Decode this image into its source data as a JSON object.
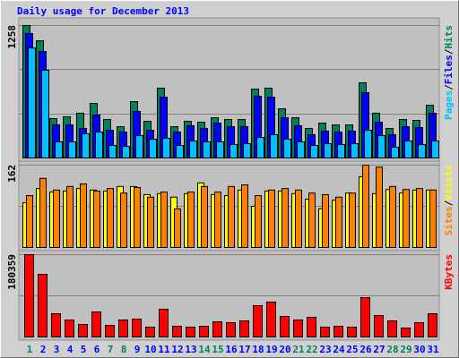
{
  "chart_data": [
    {
      "type": "bar",
      "title": "Daily usage for December 2013",
      "ylim": [
        0,
        1258
      ],
      "yticks": [
        1258
      ],
      "grid": true,
      "legend_separator": "/",
      "series": [
        {
          "name": "Hits",
          "color": "#00805c",
          "values": [
            1258,
            1113,
            374,
            391,
            425,
            518,
            365,
            297,
            535,
            348,
            663,
            297,
            348,
            340,
            382,
            365,
            365,
            654,
            663,
            467,
            382,
            280,
            331,
            314,
            314,
            714,
            425,
            280,
            365,
            357,
            501
          ]
        },
        {
          "name": "Files",
          "color": "#0000ff",
          "values": [
            1181,
            1011,
            314,
            314,
            280,
            408,
            263,
            246,
            442,
            263,
            578,
            246,
            306,
            280,
            331,
            297,
            297,
            586,
            578,
            382,
            306,
            221,
            255,
            246,
            255,
            620,
            340,
            221,
            297,
            289,
            425
          ]
        },
        {
          "name": "Pages",
          "color": "#00c0ff",
          "values": [
            1045,
            833,
            153,
            153,
            230,
            246,
            119,
            110,
            212,
            178,
            187,
            119,
            161,
            153,
            153,
            127,
            136,
            195,
            221,
            178,
            153,
            119,
            136,
            127,
            136,
            263,
            212,
            102,
            161,
            127,
            161
          ]
        }
      ]
    },
    {
      "type": "bar",
      "ylim": [
        0,
        162
      ],
      "yticks": [
        162
      ],
      "grid": true,
      "legend_separator": "/",
      "series": [
        {
          "name": "Visits",
          "color": "#ffff00",
          "values": [
            88,
            116,
            109,
            111,
            116,
            113,
            111,
            120,
            120,
            104,
            106,
            99,
            106,
            127,
            104,
            102,
            113,
            81,
            111,
            111,
            106,
            95,
            76,
            93,
            107,
            139,
            106,
            114,
            107,
            113,
            113
          ]
        },
        {
          "name": "Sites",
          "color": "#ff8000",
          "values": [
            102,
            136,
            113,
            120,
            125,
            111,
            116,
            107,
            118,
            99,
            109,
            76,
            109,
            120,
            109,
            120,
            123,
            102,
            113,
            116,
            113,
            107,
            104,
            99,
            107,
            162,
            158,
            120,
            114,
            116,
            113
          ]
        }
      ]
    },
    {
      "type": "bar",
      "ylim": [
        0,
        180359
      ],
      "yticks": [
        180359
      ],
      "grid": true,
      "categories": [
        "1",
        "2",
        "3",
        "4",
        "5",
        "6",
        "7",
        "8",
        "9",
        "10",
        "11",
        "12",
        "13",
        "14",
        "15",
        "16",
        "17",
        "18",
        "19",
        "20",
        "21",
        "22",
        "23",
        "24",
        "25",
        "26",
        "27",
        "28",
        "29",
        "30",
        "31"
      ],
      "category_colors": [
        "#00805c",
        "#0000ff",
        "#0000ff",
        "#0000ff",
        "#0000ff",
        "#0000ff",
        "#00805c",
        "#00805c",
        "#0000ff",
        "#0000ff",
        "#0000ff",
        "#0000ff",
        "#0000ff",
        "#00805c",
        "#00805c",
        "#0000ff",
        "#0000ff",
        "#0000ff",
        "#0000ff",
        "#0000ff",
        "#00805c",
        "#00805c",
        "#0000ff",
        "#0000ff",
        "#0000ff",
        "#0000ff",
        "#0000ff",
        "#00805c",
        "#00805c",
        "#0000ff",
        "#0000ff"
      ],
      "series": [
        {
          "name": "KBytes",
          "color": "#ff0000",
          "values": [
            180359,
            137230,
            50971,
            37248,
            27447,
            54892,
            25486,
            37248,
            39209,
            21565,
            60773,
            23525,
            21565,
            23525,
            33327,
            31367,
            35288,
            68614,
            76456,
            45090,
            37248,
            43130,
            21565,
            23525,
            21565,
            86257,
            47051,
            35288,
            19604,
            31367,
            50971
          ]
        }
      ]
    }
  ]
}
